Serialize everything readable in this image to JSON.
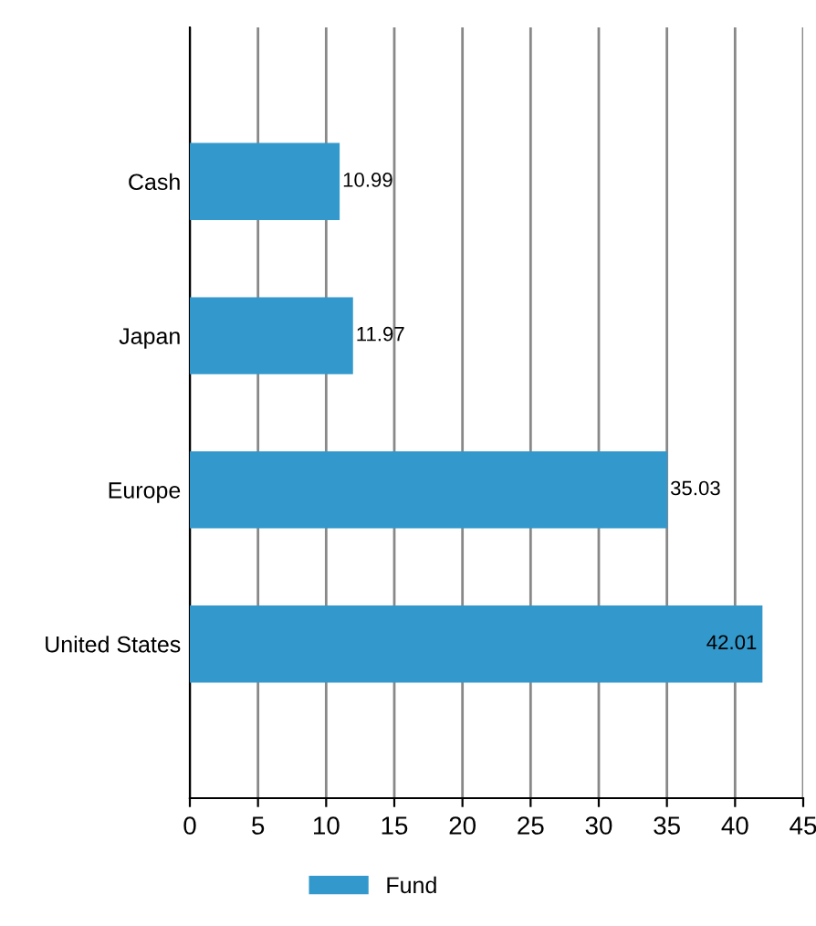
{
  "chart_data": {
    "type": "bar",
    "orientation": "horizontal",
    "categories": [
      "Cash",
      "Japan",
      "Europe",
      "United States"
    ],
    "series": [
      {
        "name": "Fund",
        "color": "#3399cc",
        "values": [
          10.99,
          11.97,
          35.03,
          42.01
        ]
      }
    ],
    "xlim": [
      0,
      45
    ],
    "xticks": [
      0,
      5,
      10,
      15,
      20,
      25,
      30,
      35,
      40,
      45
    ],
    "grid": "x",
    "legend": "bottom",
    "data_labels": true
  }
}
